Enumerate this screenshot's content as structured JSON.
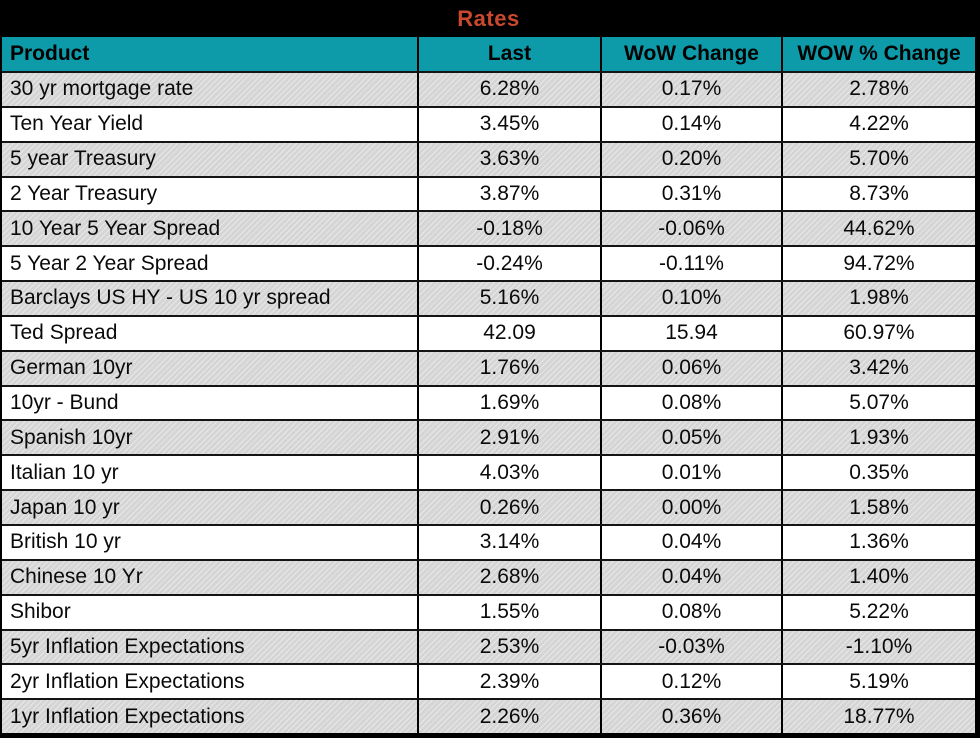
{
  "colors": {
    "title_bg": "#000000",
    "title_color": "#C9482E",
    "header_bg": "#0D9BA9",
    "row_bg": "#FFFFFF",
    "row_alt_bg": "#D9D9D9",
    "grid_line": "#141414",
    "text_color": "#0A0A0A"
  },
  "chart_data": {
    "type": "table",
    "title": "Rates",
    "columns": [
      "Product",
      "Last",
      "WoW Change",
      "WOW % Change"
    ],
    "rows": [
      [
        "30 yr mortgage rate",
        "6.28%",
        "0.17%",
        "2.78%"
      ],
      [
        "Ten Year Yield",
        "3.45%",
        "0.14%",
        "4.22%"
      ],
      [
        "5 year Treasury",
        "3.63%",
        "0.20%",
        "5.70%"
      ],
      [
        "2 Year Treasury",
        "3.87%",
        "0.31%",
        "8.73%"
      ],
      [
        "10 Year 5 Year Spread",
        "-0.18%",
        "-0.06%",
        "44.62%"
      ],
      [
        "5 Year 2 Year Spread",
        "-0.24%",
        "-0.11%",
        "94.72%"
      ],
      [
        "Barclays US HY - US 10 yr spread",
        "5.16%",
        "0.10%",
        "1.98%"
      ],
      [
        "Ted Spread",
        "42.09",
        "15.94",
        "60.97%"
      ],
      [
        "German 10yr",
        "1.76%",
        "0.06%",
        "3.42%"
      ],
      [
        "10yr - Bund",
        "1.69%",
        "0.08%",
        "5.07%"
      ],
      [
        "Spanish 10yr",
        "2.91%",
        "0.05%",
        "1.93%"
      ],
      [
        "Italian 10 yr",
        "4.03%",
        "0.01%",
        "0.35%"
      ],
      [
        "Japan 10 yr",
        "0.26%",
        "0.00%",
        "1.58%"
      ],
      [
        "British 10 yr",
        "3.14%",
        "0.04%",
        "1.36%"
      ],
      [
        "Chinese 10 Yr",
        "2.68%",
        "0.04%",
        "1.40%"
      ],
      [
        "Shibor",
        "1.55%",
        "0.08%",
        "5.22%"
      ],
      [
        "5yr Inflation Expectations",
        "2.53%",
        "-0.03%",
        "-1.10%"
      ],
      [
        "2yr Inflation Expectations",
        "2.39%",
        "0.12%",
        "5.19%"
      ],
      [
        "1yr Inflation Expectations",
        "2.26%",
        "0.36%",
        "18.77%"
      ]
    ]
  }
}
